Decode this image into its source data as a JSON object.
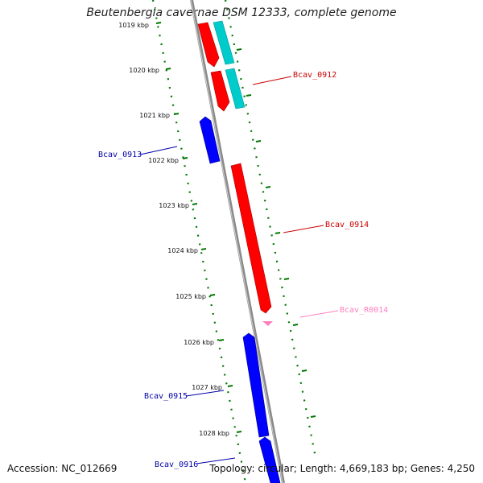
{
  "title": "Beutenbergia cavernae DSM 12333, complete genome",
  "footer": {
    "accession": "Accession: NC_012669",
    "summary": "Topology: circular; Length: 4,669,183 bp; Genes: 4,250"
  },
  "colors": {
    "forward_cds": "#ff0000",
    "reverse_cds": "#0000ff",
    "rna": "#ff80c0",
    "other": "#00cccc",
    "backbone": "#808080",
    "ticks": "#007700"
  },
  "kbp_ticks": [
    "1019 kbp",
    "1020 kbp",
    "1021 kbp",
    "1022 kbp",
    "1023 kbp",
    "1024 kbp",
    "1025 kbp",
    "1026 kbp",
    "1027 kbp",
    "1028 kbp"
  ],
  "gene_labels": [
    {
      "name": "Bcav_0912",
      "color": "#cc0000"
    },
    {
      "name": "Bcav_0913",
      "color": "#0000aa"
    },
    {
      "name": "Bcav_0914",
      "color": "#cc0000"
    },
    {
      "name": "Bcav_R0014",
      "color": "#ff80c0"
    },
    {
      "name": "Bcav_0915",
      "color": "#0000aa"
    },
    {
      "name": "Bcav_0916",
      "color": "#0000aa"
    }
  ]
}
